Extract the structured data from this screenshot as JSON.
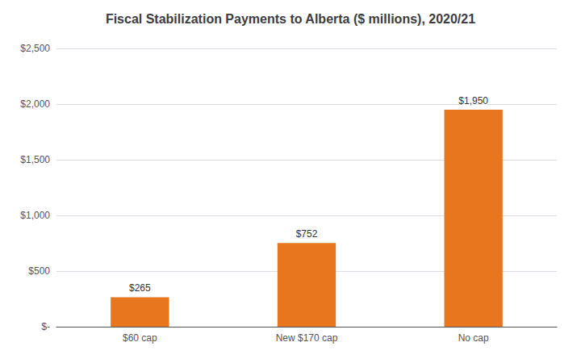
{
  "chart_data": {
    "type": "bar",
    "title": "Fiscal Stabilization Payments to Alberta ($ millions), 2020/21",
    "categories": [
      "$60 cap",
      "New $170 cap",
      "No cap"
    ],
    "values": [
      265,
      752,
      1950
    ],
    "value_labels": [
      "$265",
      "$752",
      "$1,950"
    ],
    "color": "#E8761E",
    "ylim": [
      0,
      2500
    ],
    "yticks": [
      {
        "value": 0,
        "label": "$-"
      },
      {
        "value": 500,
        "label": "$500"
      },
      {
        "value": 1000,
        "label": "$1,000"
      },
      {
        "value": 1500,
        "label": "$1,500"
      },
      {
        "value": 2000,
        "label": "$2,000"
      },
      {
        "value": 2500,
        "label": "$2,500"
      }
    ],
    "grid": true,
    "data_labels": true
  }
}
